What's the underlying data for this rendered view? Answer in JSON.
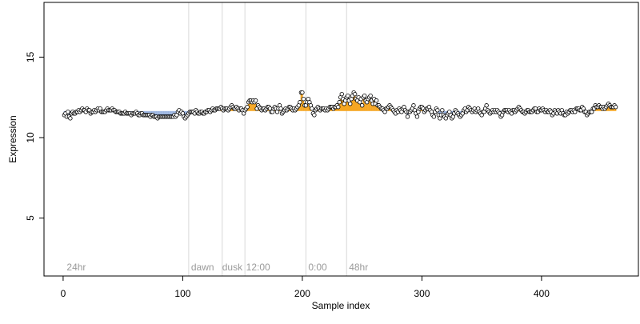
{
  "chart_data": {
    "type": "scatter",
    "title": "",
    "xlabel": "Sample index",
    "ylabel": "Expression",
    "xlim": [
      -16,
      481
    ],
    "ylim": [
      1.4,
      18.4
    ],
    "x_ticks": [
      0,
      100,
      200,
      300,
      400
    ],
    "y_ticks": [
      5,
      10,
      15
    ],
    "grid": false,
    "legend": "none",
    "phase_boundaries": [
      105,
      133,
      152,
      203,
      237
    ],
    "phase_labels": [
      {
        "text": "24hr",
        "x": 3
      },
      {
        "text": "dawn",
        "x": 107
      },
      {
        "text": "dusk",
        "x": 133
      },
      {
        "text": "12:00",
        "x": 153
      },
      {
        "text": "0:00",
        "x": 205
      },
      {
        "text": "48hr",
        "x": 239
      }
    ],
    "colors": {
      "point_edge": "#000000",
      "point_fill": "#ffffff",
      "high_bar": "#f5a623",
      "low_bar": "#9bb4e0",
      "boundary_line": "#d8d8d8",
      "phase_label": "#9a9a9a"
    },
    "baseline": 11.65,
    "series": [
      {
        "x_start": 1,
        "x_step": 1,
        "y": [
          11.4,
          11.5,
          11.3,
          11.6,
          11.3,
          11.2,
          11.5,
          11.6,
          11.5,
          11.5,
          11.6,
          11.6,
          11.7,
          11.6,
          11.7,
          11.8,
          11.7,
          11.7,
          11.6,
          11.8,
          11.7,
          11.7,
          11.5,
          11.6,
          11.6,
          11.7,
          11.6,
          11.7,
          11.8,
          11.7,
          11.8,
          11.6,
          11.6,
          11.6,
          11.6,
          11.7,
          11.8,
          11.7,
          11.7,
          11.7,
          11.8,
          11.7,
          11.7,
          11.6,
          11.6,
          11.6,
          11.6,
          11.5,
          11.5,
          11.5,
          11.5,
          11.6,
          11.5,
          11.5,
          11.5,
          11.5,
          11.4,
          11.5,
          11.5,
          11.5,
          11.6,
          11.5,
          11.4,
          11.4,
          11.5,
          11.5,
          11.4,
          11.4,
          11.4,
          11.4,
          11.4,
          11.4,
          11.3,
          11.4,
          11.4,
          11.3,
          11.3,
          11.3,
          11.2,
          11.3,
          11.3,
          11.3,
          11.3,
          11.3,
          11.3,
          11.3,
          11.3,
          11.3,
          11.3,
          11.3,
          11.3,
          11.3,
          11.4,
          11.3,
          11.4,
          11.6,
          11.7,
          11.5,
          11.6,
          11.5,
          11.3,
          11.2,
          11.3,
          11.4,
          11.5,
          11.6,
          11.6,
          11.6,
          11.6,
          11.5,
          11.7,
          11.6,
          11.5,
          11.5,
          11.6,
          11.6,
          11.5,
          11.5,
          11.6,
          11.6,
          11.7,
          11.7,
          11.6,
          11.7,
          11.8,
          11.7,
          11.7,
          11.8,
          11.8,
          11.8,
          11.8,
          11.9,
          11.8,
          11.7,
          11.8,
          11.8,
          11.8,
          11.7,
          11.8,
          11.9,
          12.0,
          11.9,
          11.8,
          11.8,
          11.9,
          11.8,
          11.7,
          11.8,
          11.8,
          11.7,
          11.5,
          11.7,
          11.8,
          11.9,
          12.2,
          12.3,
          12.3,
          12.2,
          12.3,
          12.2,
          12.3,
          11.8,
          12.0,
          11.9,
          11.8,
          11.7,
          11.8,
          11.8,
          11.7,
          11.8,
          11.9,
          11.9,
          11.8,
          11.6,
          11.6,
          11.8,
          11.9,
          11.8,
          11.6,
          11.8,
          12.0,
          11.8,
          11.5,
          11.6,
          11.7,
          11.8,
          11.7,
          11.8,
          11.9,
          11.9,
          11.8,
          11.7,
          11.8,
          11.7,
          11.8,
          11.9,
          12.0,
          12.2,
          12.8,
          12.8,
          12.4,
          12.0,
          12.0,
          12.2,
          12.4,
          12.2,
          12.0,
          11.8,
          11.5,
          11.4,
          11.7,
          11.8,
          11.9,
          11.8,
          11.7,
          11.8,
          11.8,
          11.8,
          11.7,
          11.8,
          11.7,
          11.8,
          11.9,
          11.9,
          11.9,
          11.8,
          11.9,
          11.9,
          12.0,
          11.9,
          12.2,
          12.5,
          12.7,
          12.4,
          12.1,
          12.3,
          12.5,
          12.6,
          12.3,
          12.1,
          12.4,
          12.6,
          12.8,
          12.7,
          12.4,
          12.3,
          12.5,
          12.2,
          12.4,
          12.0,
          12.5,
          12.6,
          12.3,
          12.2,
          12.4,
          12.5,
          12.6,
          12.3,
          12.1,
          12.4,
          12.1,
          12.3,
          12.0,
          12.0,
          11.9,
          11.8,
          11.8,
          11.7,
          11.6,
          11.8,
          11.8,
          11.9,
          12.0,
          11.9,
          11.8,
          11.7,
          11.6,
          11.5,
          11.7,
          11.6,
          11.8,
          11.7,
          11.6,
          11.8,
          11.9,
          11.7,
          11.6,
          11.3,
          11.6,
          11.6,
          11.7,
          11.8,
          12.0,
          11.7,
          11.5,
          11.3,
          11.6,
          11.8,
          11.9,
          11.9,
          11.8,
          11.6,
          11.7,
          11.8,
          11.8,
          11.9,
          11.7,
          11.6,
          11.4,
          11.3,
          11.6,
          11.8,
          11.7,
          11.4,
          11.2,
          11.4,
          11.7,
          11.4,
          11.3,
          11.2,
          11.4,
          11.5,
          11.6,
          11.4,
          11.2,
          11.3,
          11.5,
          11.7,
          11.6,
          11.5,
          11.4,
          11.3,
          11.4,
          11.5,
          11.7,
          11.8,
          11.6,
          11.7,
          11.9,
          11.8,
          11.7,
          11.6,
          11.7,
          11.8,
          11.6,
          11.7,
          11.8,
          11.6,
          11.5,
          11.4,
          11.6,
          11.6,
          11.8,
          12.0,
          11.7,
          11.6,
          11.5,
          11.6,
          11.7,
          11.6,
          11.7,
          11.6,
          11.7,
          11.6,
          11.5,
          11.3,
          11.4,
          11.6,
          11.7,
          11.7,
          11.7,
          11.6,
          11.7,
          11.6,
          11.5,
          11.7,
          11.7,
          11.6,
          11.7,
          11.8,
          11.9,
          11.8,
          11.7,
          11.6,
          11.6,
          11.5,
          11.6,
          11.7,
          11.7,
          11.6,
          11.6,
          11.6,
          11.7,
          11.8,
          11.8,
          11.6,
          11.6,
          11.8,
          11.7,
          11.7,
          11.8,
          11.7,
          11.6,
          11.7,
          11.6,
          11.6,
          11.7,
          11.6,
          11.4,
          11.5,
          11.7,
          11.6,
          11.5,
          11.7,
          11.6,
          11.5,
          11.7,
          11.5,
          11.4,
          11.4,
          11.6,
          11.5,
          11.6,
          11.7,
          11.7,
          11.6,
          11.7,
          11.6,
          11.8,
          11.8,
          11.8,
          11.7,
          11.7,
          11.9,
          11.8,
          11.6,
          11.6,
          11.4,
          11.5,
          11.6,
          11.6,
          11.6,
          11.8,
          11.8,
          12.0,
          11.9,
          11.9,
          12.0,
          11.9,
          11.9,
          11.8,
          11.9,
          11.8,
          11.9,
          12.0,
          12.1,
          12.0,
          11.9,
          11.9,
          11.9,
          12.0,
          11.9
        ]
      }
    ]
  }
}
